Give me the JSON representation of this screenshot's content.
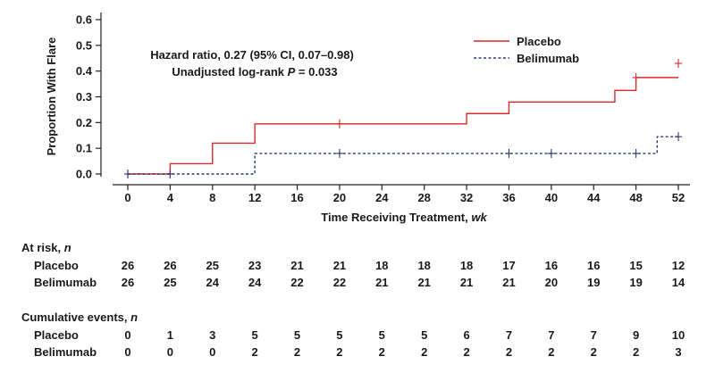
{
  "chart_data": {
    "type": "line",
    "step": true,
    "xlabel": "Time Receiving Treatment, wk",
    "ylabel": "Proportion With Flare",
    "xticks": [
      0,
      4,
      8,
      12,
      16,
      20,
      24,
      28,
      32,
      36,
      40,
      44,
      48,
      52
    ],
    "yticks": [
      "0.0",
      "0.1",
      "0.2",
      "0.3",
      "0.4",
      "0.5",
      "0.6"
    ],
    "xlim": [
      0,
      54
    ],
    "ylim": [
      0,
      0.6
    ],
    "legend_position": "top-right",
    "annotation": {
      "line1": "Hazard ratio, 0.27 (95% CI, 0.07–0.98)",
      "line2_prefix": "Unadjusted log-rank ",
      "line2_p": "P",
      "line2_suffix": " = 0.033"
    },
    "series": [
      {
        "name": "Placebo",
        "color": "#d62b2b",
        "dash": "solid",
        "steps": [
          [
            0,
            0
          ],
          [
            4,
            0.04
          ],
          [
            8,
            0.12
          ],
          [
            12,
            0.195
          ],
          [
            32,
            0.235
          ],
          [
            36,
            0.28
          ],
          [
            46,
            0.325
          ],
          [
            48,
            0.375
          ],
          [
            52,
            0.375
          ]
        ],
        "censor": [
          [
            0,
            0
          ],
          [
            4,
            0
          ],
          [
            20,
            0.195
          ],
          [
            48,
            0.375
          ],
          [
            52,
            0.43
          ]
        ]
      },
      {
        "name": "Belimumab",
        "color": "#2f3b74",
        "dash": "dashed",
        "steps": [
          [
            0,
            0
          ],
          [
            12,
            0.08
          ],
          [
            50,
            0.145
          ],
          [
            52,
            0.145
          ]
        ],
        "censor": [
          [
            0,
            0
          ],
          [
            4,
            0
          ],
          [
            20,
            0.08
          ],
          [
            36,
            0.08
          ],
          [
            40,
            0.08
          ],
          [
            48,
            0.08
          ],
          [
            52,
            0.145
          ]
        ]
      }
    ]
  },
  "at_risk": {
    "title": "At risk, ",
    "title_n": "n",
    "rows": [
      {
        "label": "Placebo",
        "values": [
          "26",
          "26",
          "25",
          "23",
          "21",
          "21",
          "18",
          "18",
          "18",
          "17",
          "16",
          "16",
          "15",
          "12"
        ]
      },
      {
        "label": "Belimumab",
        "values": [
          "26",
          "25",
          "24",
          "24",
          "22",
          "22",
          "21",
          "21",
          "21",
          "21",
          "20",
          "19",
          "19",
          "14"
        ]
      }
    ]
  },
  "cumulative_events": {
    "title": "Cumulative events, ",
    "title_n": "n",
    "rows": [
      {
        "label": "Placebo",
        "values": [
          "0",
          "1",
          "3",
          "5",
          "5",
          "5",
          "5",
          "5",
          "6",
          "7",
          "7",
          "7",
          "9",
          "10"
        ]
      },
      {
        "label": "Belimumab",
        "values": [
          "0",
          "0",
          "0",
          "2",
          "2",
          "2",
          "2",
          "2",
          "2",
          "2",
          "2",
          "2",
          "2",
          "3"
        ]
      }
    ]
  }
}
